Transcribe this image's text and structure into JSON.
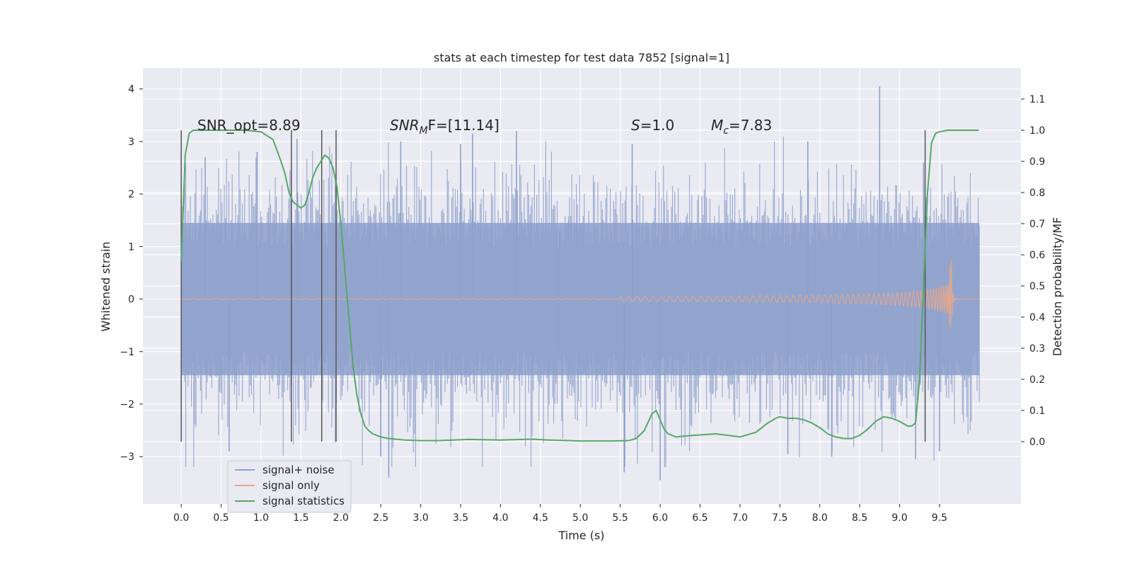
{
  "chart_data": {
    "type": "line",
    "title": "stats at each timestep for test data 7852 [signal=1]",
    "xlabel": "Time (s)",
    "ylabel_left": "Whitened strain",
    "ylabel_right": "Detection probability/MF",
    "xlim": [
      -0.48,
      10.52
    ],
    "ylim_left": [
      -3.9,
      4.4
    ],
    "ylim_right": [
      -0.2,
      1.2
    ],
    "x_ticks": [
      "0.0",
      "0.5",
      "1.0",
      "1.5",
      "2.0",
      "2.5",
      "3.0",
      "3.5",
      "4.0",
      "4.5",
      "5.0",
      "5.5",
      "6.0",
      "6.5",
      "7.0",
      "7.5",
      "8.0",
      "8.5",
      "9.0",
      "9.5"
    ],
    "left_ticks": [
      "−3",
      "−2",
      "−1",
      "0",
      "1",
      "2",
      "3",
      "4"
    ],
    "right_ticks": [
      "0.0",
      "0.1",
      "0.2",
      "0.3",
      "0.4",
      "0.5",
      "0.6",
      "0.7",
      "0.8",
      "0.9",
      "1.0",
      "1.1"
    ],
    "grid": true,
    "legend_placement": "lower-left",
    "legend": [
      "signal+ noise",
      "signal only",
      "signal statistics"
    ],
    "annotations": {
      "snr_opt": "SNR_opt=8.89",
      "snr_mf_main": "SNR",
      "snr_mf_sub": "M",
      "snr_mf_rest": "F=[11.14]",
      "s_var": "S",
      "s_rest": "=1.0",
      "mc_var": "M",
      "mc_sub": "c",
      "mc_rest": "=7.83"
    },
    "vlines_x": [
      0.0,
      1.38,
      1.76,
      1.94,
      9.32
    ],
    "vline_range_right": [
      0.0,
      1.0
    ],
    "series": [
      {
        "name": "signal+ noise",
        "color": "#8da0cb",
        "x_range": [
          0.0,
          10.0
        ],
        "envelope_typical": 1.45,
        "peaks": [
          {
            "x": 0.3,
            "y": 2.7
          },
          {
            "x": 0.95,
            "y": 2.8
          },
          {
            "x": 1.45,
            "y": 3.05
          },
          {
            "x": 2.75,
            "y": 3.0
          },
          {
            "x": 3.5,
            "y": 2.95
          },
          {
            "x": 3.65,
            "y": 3.15
          },
          {
            "x": 4.2,
            "y": 3.2
          },
          {
            "x": 5.65,
            "y": 2.95
          },
          {
            "x": 7.85,
            "y": 3.0
          },
          {
            "x": 8.75,
            "y": 4.05
          },
          {
            "x": 9.3,
            "y": 2.6
          },
          {
            "x": 0.6,
            "y": -2.9
          },
          {
            "x": 2.5,
            "y": -3.0
          },
          {
            "x": 2.6,
            "y": -3.4
          },
          {
            "x": 5.55,
            "y": -3.3
          },
          {
            "x": 6.0,
            "y": -3.45
          },
          {
            "x": 7.6,
            "y": -2.95
          },
          {
            "x": 8.15,
            "y": -3.0
          },
          {
            "x": 9.2,
            "y": -3.05
          },
          {
            "x": 9.5,
            "y": -2.9
          }
        ]
      },
      {
        "name": "signal only",
        "color": "#e5a88c",
        "x_range": [
          0.0,
          10.0
        ],
        "chirp_start": 5.5,
        "merger_time": 9.65,
        "peak_amplitude": 1.15
      },
      {
        "name": "signal statistics",
        "color": "#55a868",
        "axis": "right",
        "x": [
          0.0,
          0.05,
          0.1,
          0.15,
          0.2,
          0.4,
          0.6,
          0.8,
          1.0,
          1.15,
          1.25,
          1.3,
          1.35,
          1.4,
          1.45,
          1.5,
          1.55,
          1.6,
          1.65,
          1.7,
          1.75,
          1.8,
          1.85,
          1.9,
          1.95,
          2.0,
          2.05,
          2.1,
          2.15,
          2.2,
          2.25,
          2.3,
          2.35,
          2.4,
          2.5,
          2.6,
          2.8,
          3.0,
          3.2,
          3.6,
          4.0,
          4.4,
          4.6,
          5.0,
          5.4,
          5.6,
          5.7,
          5.8,
          5.9,
          5.95,
          6.0,
          6.05,
          6.1,
          6.2,
          6.4,
          6.7,
          7.0,
          7.2,
          7.35,
          7.45,
          7.5,
          7.6,
          7.7,
          7.8,
          7.9,
          8.0,
          8.1,
          8.2,
          8.3,
          8.4,
          8.5,
          8.6,
          8.7,
          8.8,
          8.9,
          9.0,
          9.1,
          9.15,
          9.2,
          9.25,
          9.3,
          9.35,
          9.4,
          9.45,
          9.5,
          9.6,
          9.7,
          9.99
        ],
        "y": [
          0.58,
          0.92,
          0.99,
          1.0,
          1.0,
          1.0,
          1.0,
          1.0,
          0.995,
          0.97,
          0.9,
          0.86,
          0.8,
          0.77,
          0.76,
          0.75,
          0.76,
          0.8,
          0.85,
          0.88,
          0.9,
          0.92,
          0.91,
          0.88,
          0.82,
          0.7,
          0.55,
          0.4,
          0.25,
          0.15,
          0.09,
          0.05,
          0.035,
          0.025,
          0.015,
          0.01,
          0.005,
          0.003,
          0.003,
          0.007,
          0.005,
          0.008,
          0.005,
          0.002,
          0.002,
          0.003,
          0.01,
          0.035,
          0.09,
          0.1,
          0.07,
          0.04,
          0.025,
          0.015,
          0.02,
          0.025,
          0.015,
          0.03,
          0.06,
          0.075,
          0.08,
          0.075,
          0.075,
          0.07,
          0.06,
          0.045,
          0.025,
          0.015,
          0.01,
          0.01,
          0.02,
          0.04,
          0.065,
          0.08,
          0.075,
          0.065,
          0.05,
          0.05,
          0.06,
          0.2,
          0.5,
          0.8,
          0.96,
          0.99,
          0.995,
          1.0,
          1.0,
          1.0
        ]
      }
    ]
  }
}
